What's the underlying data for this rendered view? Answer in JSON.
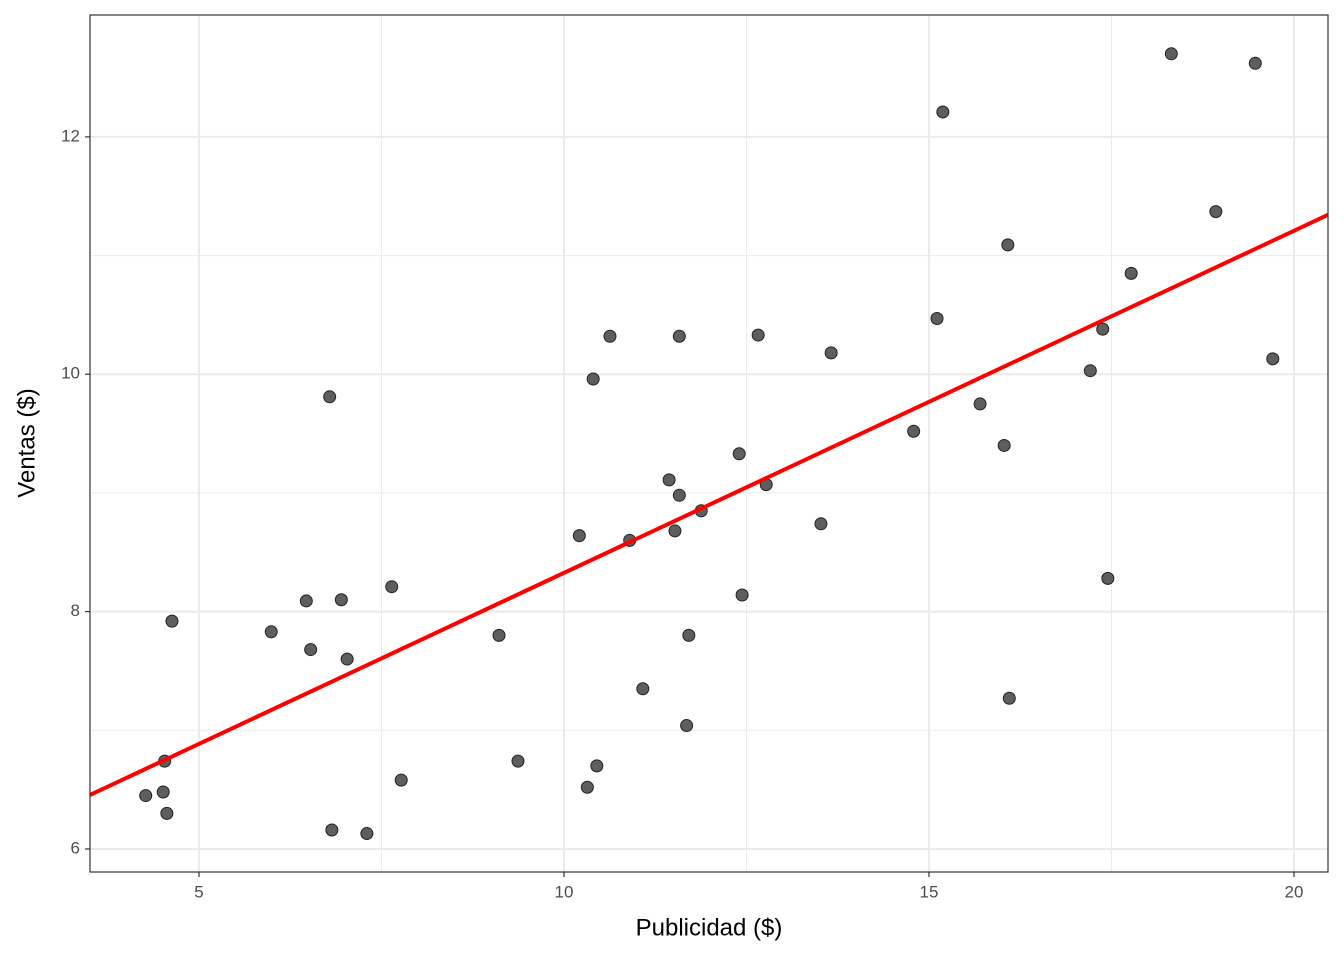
{
  "chart_data": {
    "type": "scatter",
    "x_label": "Publicidad ($)",
    "y_label": "Ventas ($)",
    "xlim": [
      3.507,
      20.466
    ],
    "ylim": [
      5.806,
      13.027
    ],
    "xticks": [
      5,
      10,
      15,
      20
    ],
    "yticks": [
      6,
      8,
      10,
      12
    ],
    "grid": true,
    "color": "#4d4d4d",
    "x": [
      4.27,
      4.51,
      4.56,
      4.53,
      4.63,
      5.99,
      6.47,
      6.53,
      6.95,
      7.03,
      6.79,
      6.82,
      7.3,
      7.64,
      7.77,
      9.11,
      9.37,
      10.21,
      10.32,
      10.4,
      10.45,
      10.63,
      10.9,
      11.08,
      11.44,
      11.52,
      11.58,
      11.58,
      11.68,
      11.71,
      11.88,
      12.4,
      12.44,
      12.66,
      12.77,
      13.52,
      13.66,
      14.79,
      15.11,
      15.19,
      15.7,
      16.03,
      16.08,
      16.1,
      17.21,
      17.38,
      17.45,
      17.77,
      18.32,
      18.93,
      19.47,
      19.71
    ],
    "values": [
      6.45,
      6.48,
      6.3,
      6.74,
      7.92,
      7.83,
      8.09,
      7.68,
      8.1,
      7.6,
      9.81,
      6.16,
      6.13,
      8.21,
      6.58,
      7.8,
      6.74,
      8.64,
      6.52,
      9.96,
      6.7,
      10.32,
      8.6,
      7.35,
      9.11,
      8.68,
      8.98,
      10.32,
      7.04,
      7.8,
      8.85,
      9.33,
      8.14,
      10.33,
      9.07,
      8.74,
      10.18,
      9.52,
      10.47,
      12.21,
      9.75,
      9.4,
      11.09,
      7.27,
      10.03,
      10.38,
      8.28,
      10.85,
      12.7,
      11.37,
      12.62,
      10.13
    ],
    "fit": {
      "color": "#ff0000",
      "x": [
        3.507,
        20.466
      ],
      "values": [
        6.455,
        11.343
      ]
    }
  }
}
